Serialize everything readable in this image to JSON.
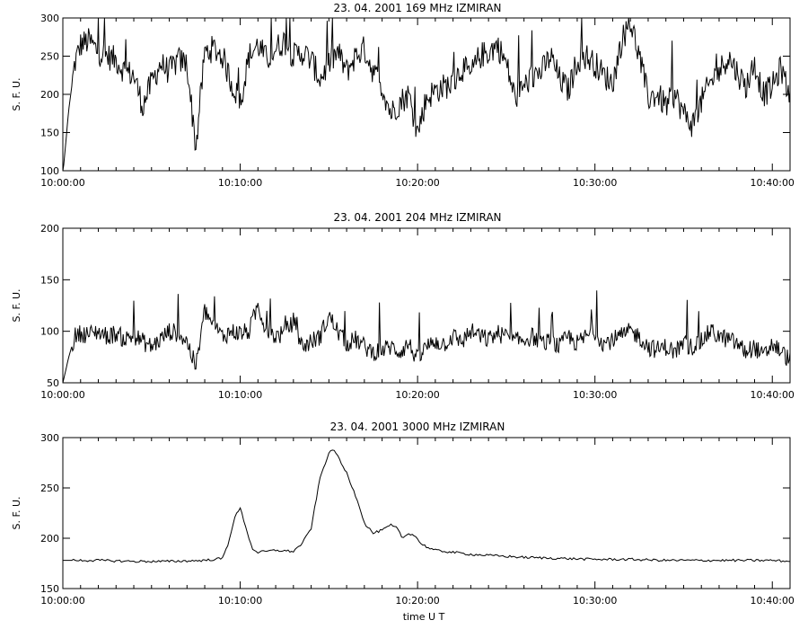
{
  "x_axis_label": "time  U T",
  "chart_data": [
    {
      "type": "line",
      "title": "23.  04.  2001    169  MHz    IZMIRAN",
      "ylabel": "S. F. U.",
      "ylim": [
        100,
        300
      ],
      "yticks": [
        100,
        150,
        200,
        250,
        300
      ],
      "xlim": [
        "10:00:00",
        "10:41:00"
      ],
      "xticks": [
        "10:00:00",
        "10:10:00",
        "10:20:00",
        "10:30:00",
        "10:40:00"
      ],
      "series": [
        {
          "x": [
            "10:00:00",
            "10:00:20",
            "10:00:40",
            "10:01:00",
            "10:01:30",
            "10:02:00",
            "10:02:30",
            "10:03:00",
            "10:03:30",
            "10:04:00",
            "10:04:30",
            "10:05:00",
            "10:05:30",
            "10:06:00",
            "10:06:30",
            "10:07:00",
            "10:07:30",
            "10:08:00",
            "10:08:30",
            "10:09:00",
            "10:09:30",
            "10:10:00",
            "10:10:30",
            "10:11:00",
            "10:11:30",
            "10:12:00",
            "10:12:30",
            "10:13:00",
            "10:13:30",
            "10:14:00",
            "10:14:30",
            "10:15:00",
            "10:15:30",
            "10:16:00",
            "10:16:30",
            "10:17:00",
            "10:17:30",
            "10:18:00",
            "10:18:30",
            "10:19:00",
            "10:19:30",
            "10:20:00",
            "10:20:30",
            "10:21:00",
            "10:21:30",
            "10:22:00",
            "10:22:30",
            "10:23:00",
            "10:23:30",
            "10:24:00",
            "10:24:30",
            "10:25:00",
            "10:25:30",
            "10:26:00",
            "10:26:30",
            "10:27:00",
            "10:27:30",
            "10:28:00",
            "10:28:30",
            "10:29:00",
            "10:29:30",
            "10:30:00",
            "10:30:30",
            "10:31:00",
            "10:31:30",
            "10:32:00",
            "10:32:30",
            "10:33:00",
            "10:33:30",
            "10:34:00",
            "10:34:30",
            "10:35:00",
            "10:35:30",
            "10:36:00",
            "10:36:30",
            "10:37:00",
            "10:37:30",
            "10:38:00",
            "10:38:30",
            "10:39:00",
            "10:39:30",
            "10:40:00",
            "10:40:30",
            "10:41:00"
          ],
          "y": [
            95,
            180,
            240,
            265,
            270,
            255,
            250,
            245,
            230,
            225,
            185,
            215,
            240,
            230,
            245,
            240,
            130,
            255,
            260,
            250,
            215,
            190,
            250,
            265,
            245,
            260,
            270,
            250,
            255,
            245,
            220,
            240,
            255,
            230,
            250,
            260,
            230,
            210,
            175,
            190,
            200,
            150,
            195,
            205,
            210,
            215,
            235,
            225,
            250,
            255,
            265,
            240,
            195,
            210,
            225,
            230,
            250,
            220,
            205,
            245,
            250,
            240,
            225,
            215,
            270,
            295,
            250,
            195,
            200,
            185,
            200,
            175,
            160,
            190,
            215,
            230,
            250,
            230,
            210,
            240,
            200,
            210,
            235,
            195
          ]
        }
      ]
    },
    {
      "type": "line",
      "title": "23.  04.  2001    204  MHz    IZMIRAN",
      "ylabel": "S. F. U.",
      "ylim": [
        50,
        200
      ],
      "yticks": [
        50,
        100,
        150,
        200
      ],
      "xlim": [
        "10:00:00",
        "10:41:00"
      ],
      "xticks": [
        "10:00:00",
        "10:10:00",
        "10:20:00",
        "10:30:00",
        "10:40:00"
      ],
      "series": [
        {
          "x": [
            "10:00:00",
            "10:00:20",
            "10:00:40",
            "10:01:00",
            "10:01:30",
            "10:02:00",
            "10:02:30",
            "10:03:00",
            "10:03:30",
            "10:04:00",
            "10:04:30",
            "10:05:00",
            "10:05:30",
            "10:06:00",
            "10:06:30",
            "10:07:00",
            "10:07:30",
            "10:08:00",
            "10:08:30",
            "10:09:00",
            "10:09:30",
            "10:10:00",
            "10:10:30",
            "10:11:00",
            "10:11:30",
            "10:12:00",
            "10:12:30",
            "10:13:00",
            "10:13:30",
            "10:14:00",
            "10:14:30",
            "10:15:00",
            "10:15:30",
            "10:16:00",
            "10:16:30",
            "10:17:00",
            "10:17:30",
            "10:18:00",
            "10:18:30",
            "10:19:00",
            "10:19:30",
            "10:20:00",
            "10:20:30",
            "10:21:00",
            "10:21:30",
            "10:22:00",
            "10:22:30",
            "10:23:00",
            "10:23:30",
            "10:24:00",
            "10:24:30",
            "10:25:00",
            "10:25:30",
            "10:26:00",
            "10:26:30",
            "10:27:00",
            "10:27:30",
            "10:28:00",
            "10:28:30",
            "10:29:00",
            "10:29:30",
            "10:30:00",
            "10:30:30",
            "10:31:00",
            "10:31:30",
            "10:32:00",
            "10:32:30",
            "10:33:00",
            "10:33:30",
            "10:34:00",
            "10:34:30",
            "10:35:00",
            "10:35:30",
            "10:36:00",
            "10:36:30",
            "10:37:00",
            "10:37:30",
            "10:38:00",
            "10:38:30",
            "10:39:00",
            "10:39:30",
            "10:40:00",
            "10:40:30",
            "10:41:00"
          ],
          "y": [
            50,
            75,
            95,
            98,
            97,
            100,
            95,
            98,
            92,
            96,
            90,
            85,
            92,
            100,
            98,
            90,
            65,
            120,
            105,
            95,
            100,
            98,
            100,
            125,
            100,
            95,
            98,
            110,
            85,
            90,
            95,
            115,
            100,
            88,
            92,
            85,
            80,
            82,
            85,
            80,
            88,
            72,
            85,
            90,
            88,
            95,
            90,
            100,
            95,
            92,
            98,
            95,
            90,
            92,
            95,
            88,
            90,
            85,
            95,
            88,
            95,
            100,
            88,
            92,
            95,
            100,
            95,
            85,
            82,
            85,
            80,
            88,
            85,
            90,
            100,
            95,
            92,
            88,
            80,
            85,
            75,
            88,
            80,
            72
          ]
        }
      ]
    },
    {
      "type": "line",
      "title": "23.  04.  2001    3000  MHz    IZMIRAN",
      "ylabel": "S. F. U.",
      "xlabel": "time  U T",
      "ylim": [
        150,
        300
      ],
      "yticks": [
        150,
        200,
        250,
        300
      ],
      "xlim": [
        "10:00:00",
        "10:41:00"
      ],
      "xticks": [
        "10:00:00",
        "10:10:00",
        "10:20:00",
        "10:30:00",
        "10:40:00"
      ],
      "series": [
        {
          "x": [
            "10:00:00",
            "10:02:00",
            "10:04:00",
            "10:06:00",
            "10:08:00",
            "10:09:00",
            "10:09:20",
            "10:09:40",
            "10:10:00",
            "10:10:20",
            "10:10:40",
            "10:11:00",
            "10:12:00",
            "10:13:00",
            "10:13:30",
            "10:14:00",
            "10:14:30",
            "10:15:00",
            "10:15:20",
            "10:15:40",
            "10:16:00",
            "10:16:20",
            "10:16:40",
            "10:17:00",
            "10:17:30",
            "10:18:00",
            "10:18:30",
            "10:18:50",
            "10:19:10",
            "10:19:30",
            "10:19:50",
            "10:20:10",
            "10:20:40",
            "10:21:00",
            "10:22:00",
            "10:23:00",
            "10:24:00",
            "10:25:00",
            "10:26:00",
            "10:28:00",
            "10:30:00",
            "10:32:00",
            "10:34:00",
            "10:36:00",
            "10:38:00",
            "10:40:00",
            "10:41:00"
          ],
          "y": [
            178,
            178,
            177,
            177,
            178,
            180,
            195,
            220,
            230,
            210,
            190,
            186,
            188,
            187,
            195,
            210,
            260,
            285,
            288,
            275,
            265,
            250,
            235,
            215,
            205,
            208,
            213,
            210,
            200,
            205,
            203,
            195,
            190,
            188,
            186,
            184,
            183,
            182,
            181,
            180,
            179,
            179,
            178,
            178,
            178,
            178,
            177
          ]
        }
      ]
    }
  ]
}
